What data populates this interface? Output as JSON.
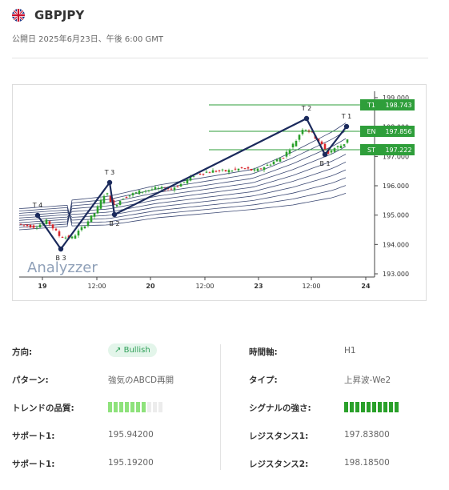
{
  "header": {
    "flag_icon": "uk-flag-icon",
    "symbol": "GBPJPY",
    "published": "公開日 2025年6月23日、午後 6:00 GMT"
  },
  "chart": {
    "y_ticks": [
      "199.000",
      "198.000",
      "197.000",
      "196.000",
      "195.000",
      "194.000",
      "193.000"
    ],
    "x_ticks": [
      "19",
      "12:00",
      "20",
      "12:00",
      "23",
      "12:00",
      "24"
    ],
    "levels": [
      {
        "tag": "T1",
        "value": "198.743",
        "color": "#2e9e3a"
      },
      {
        "tag": "EN",
        "value": "197.856",
        "color": "#2e9e3a"
      },
      {
        "tag": "ST",
        "value": "197.222",
        "color": "#2e9e3a"
      }
    ],
    "points": [
      "T 4",
      "B 3",
      "T 3",
      "B 2",
      "T 2",
      "B 1",
      "T 1"
    ],
    "watermark": "Analyzzer",
    "colors": {
      "pattern": "#1b2a5c",
      "bull": "#2aa02a",
      "bear": "#d9262b",
      "ribbon": "#1b2a5c"
    }
  },
  "details": {
    "left": [
      {
        "label": "方向:",
        "value": "Bullish",
        "icon": "arrow-up-right-icon"
      },
      {
        "label": "パターン:",
        "value": "強気のABCD再開"
      },
      {
        "label": "トレンドの品質:",
        "bars_filled": 7,
        "bars_total": 10
      },
      {
        "label": "サポート1:",
        "value": "195.94200"
      },
      {
        "label": "サポート1:",
        "value": "195.19200"
      }
    ],
    "right": [
      {
        "label": "時間軸:",
        "value": "H1"
      },
      {
        "label": "タイプ:",
        "value": "上昇波-We2"
      },
      {
        "label": "シグナルの強さ:",
        "bars_filled": 10,
        "bars_total": 10
      },
      {
        "label": "レジスタンス1:",
        "value": "197.83800"
      },
      {
        "label": "レジスタンス2:",
        "value": "198.18500"
      }
    ]
  }
}
